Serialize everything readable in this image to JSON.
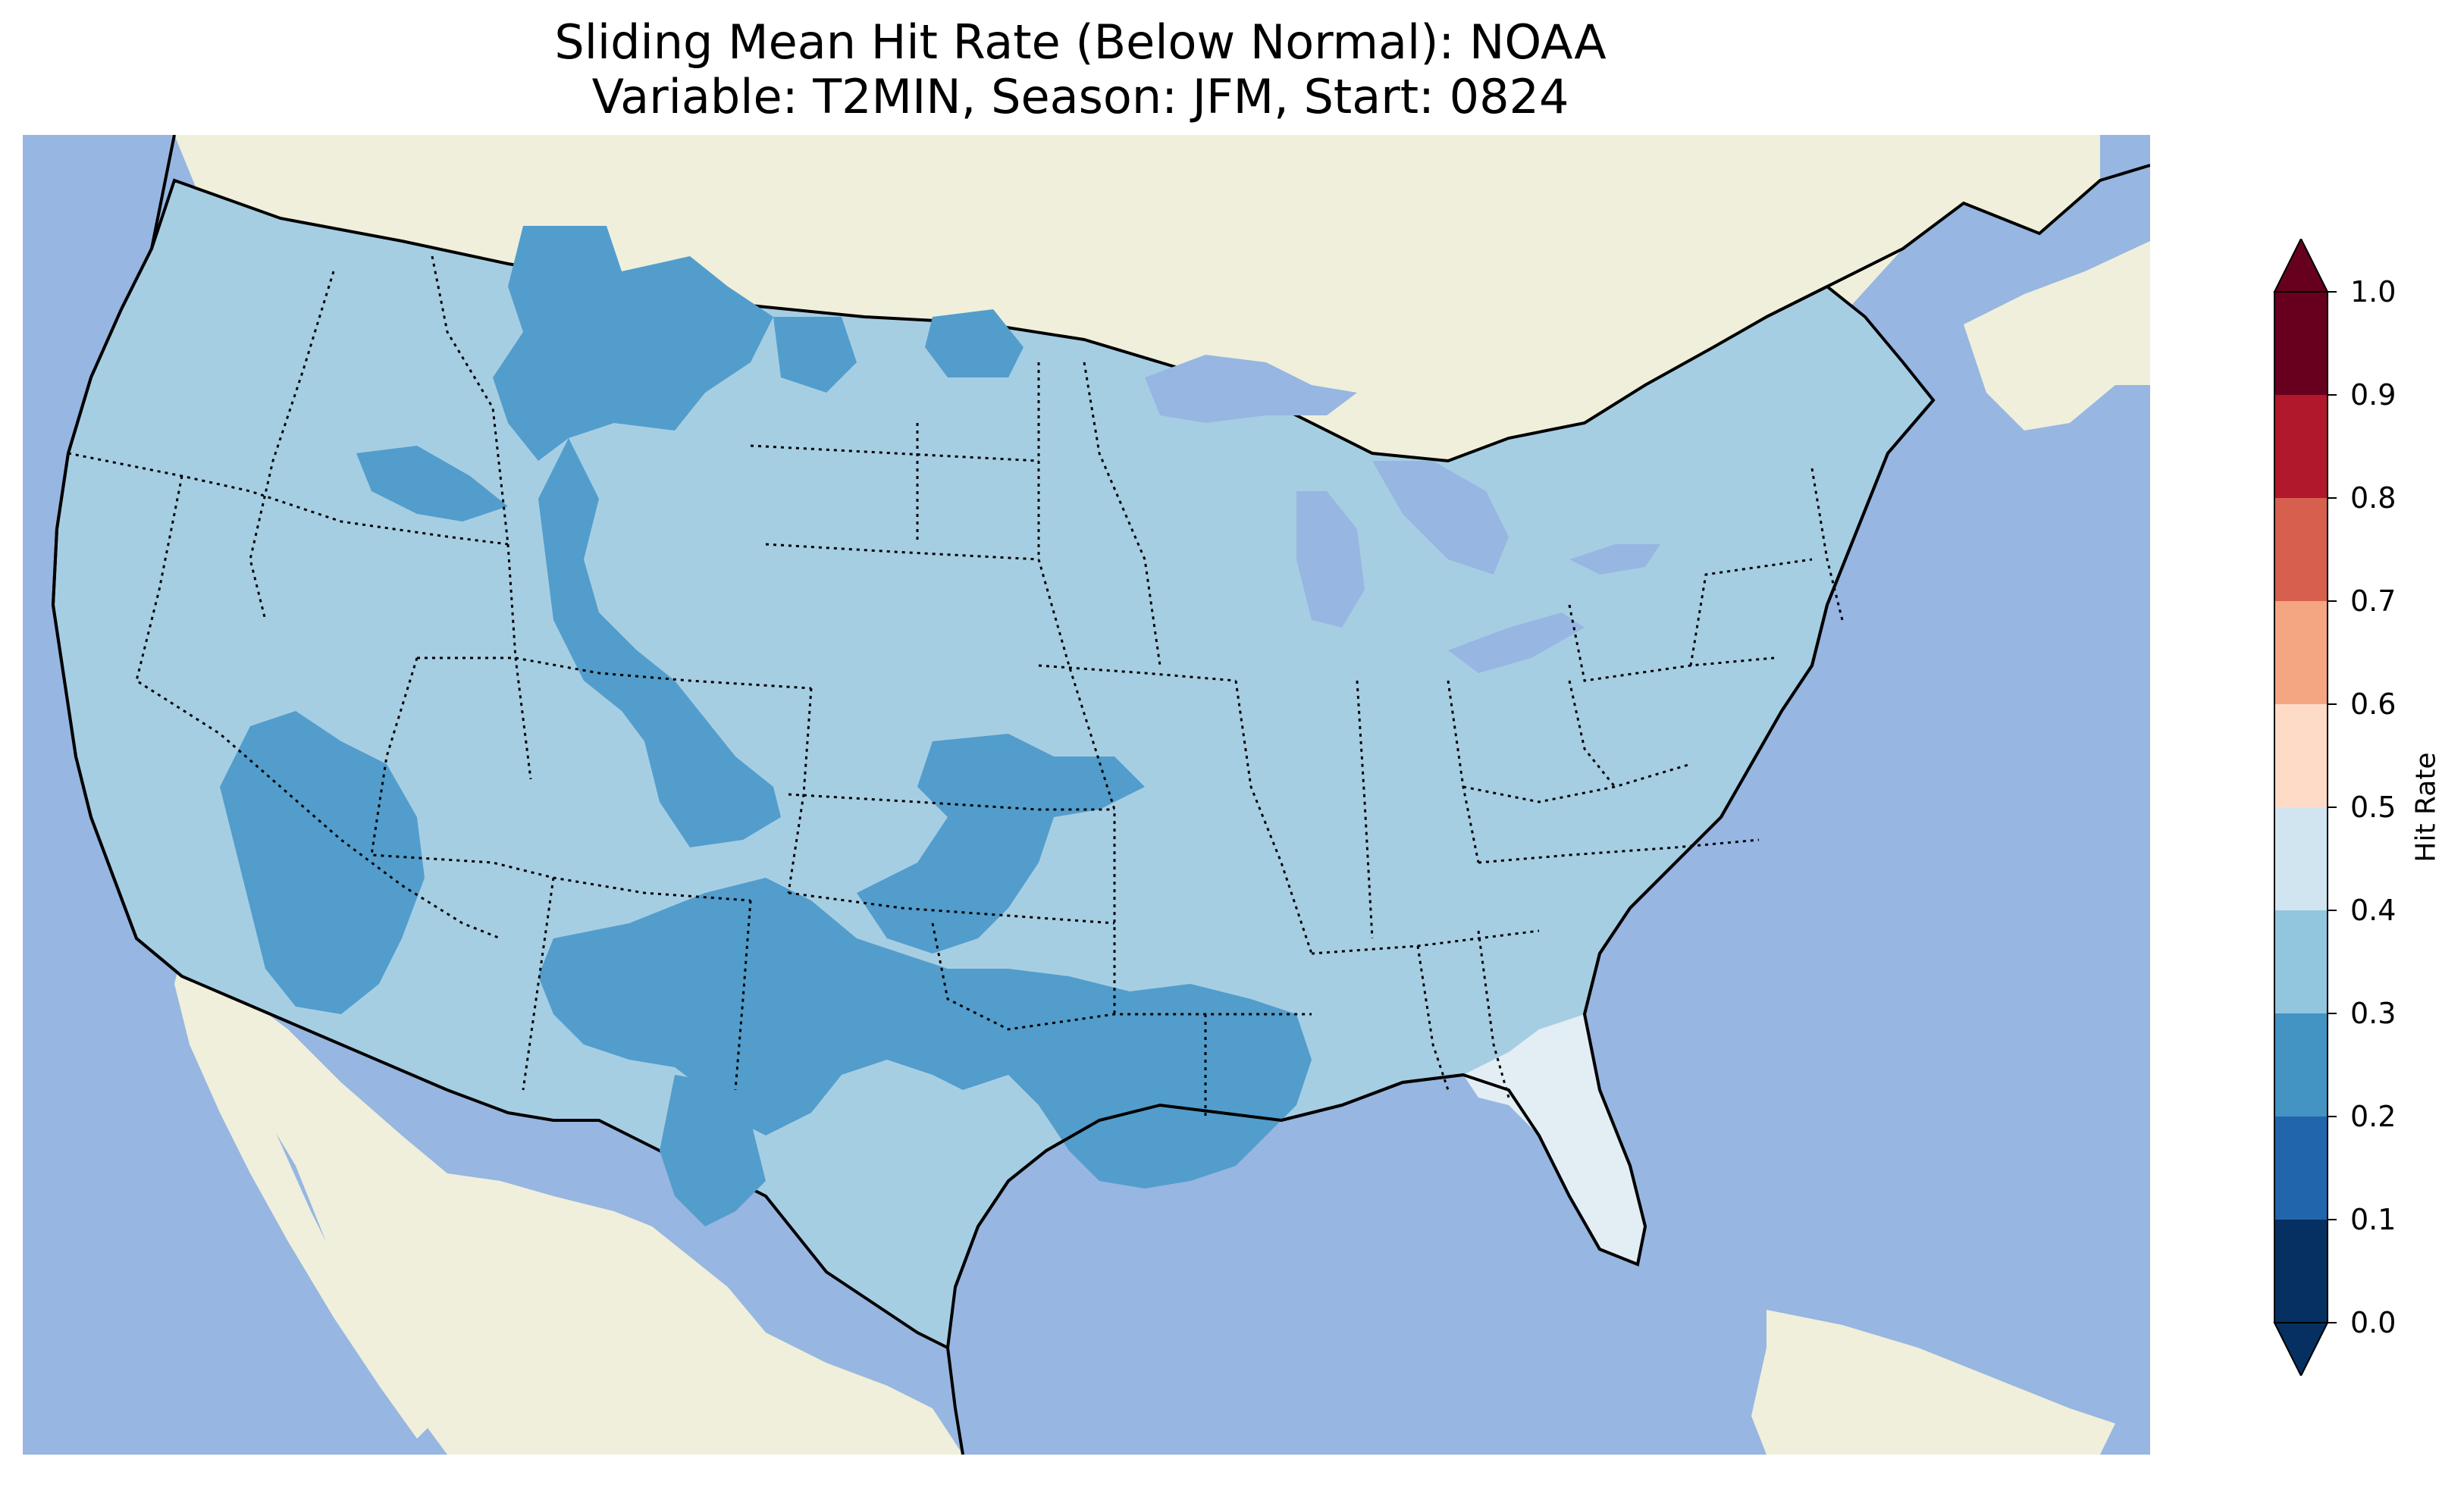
{
  "title": {
    "line1": "Sliding Mean Hit Rate (Below Normal): NOAA",
    "line2": "Variable: T2MIN, Season: JFM, Start: 0824"
  },
  "map": {
    "region": "Contiguous United States",
    "ocean_color": "#97b6e1",
    "land_color": "#efefdb",
    "fields": {
      "bin_0.3_0.4": "#a6cee3",
      "bin_0.2_0.3": "#529dcc",
      "bin_0.4_0.5": "#e2edf4"
    }
  },
  "colorbar": {
    "label": "Hit Rate",
    "extend": "both",
    "bins": [
      {
        "from": 0.0,
        "to": 0.1,
        "color": "#053061"
      },
      {
        "from": 0.1,
        "to": 0.2,
        "color": "#2166ac"
      },
      {
        "from": 0.2,
        "to": 0.3,
        "color": "#4393c3"
      },
      {
        "from": 0.3,
        "to": 0.4,
        "color": "#92c5de"
      },
      {
        "from": 0.4,
        "to": 0.5,
        "color": "#d1e5f0"
      },
      {
        "from": 0.5,
        "to": 0.6,
        "color": "#fddbc7"
      },
      {
        "from": 0.6,
        "to": 0.7,
        "color": "#f4a582"
      },
      {
        "from": 0.7,
        "to": 0.8,
        "color": "#d6604d"
      },
      {
        "from": 0.8,
        "to": 0.9,
        "color": "#b2182b"
      },
      {
        "from": 0.9,
        "to": 1.0,
        "color": "#67001f"
      }
    ],
    "under_color": "#053061",
    "over_color": "#67001f",
    "ticks": [
      "0.0",
      "0.1",
      "0.2",
      "0.3",
      "0.4",
      "0.5",
      "0.6",
      "0.7",
      "0.8",
      "0.9",
      "1.0"
    ]
  }
}
